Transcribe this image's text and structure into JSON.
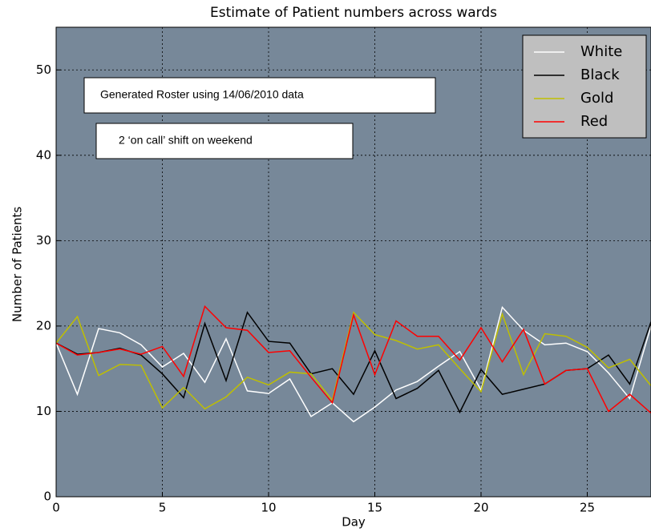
{
  "chart_data": {
    "type": "line",
    "title": "Estimate of Patient numbers across wards",
    "xlabel": "Day",
    "ylabel": "Number of Patients",
    "x": [
      0,
      1,
      2,
      3,
      4,
      5,
      6,
      7,
      8,
      9,
      10,
      11,
      12,
      13,
      14,
      15,
      16,
      17,
      18,
      19,
      20,
      21,
      22,
      23,
      24,
      25,
      26,
      27,
      28
    ],
    "series": [
      {
        "name": "White",
        "color": "#ffffff",
        "values": [
          18,
          12,
          19.7,
          19.2,
          17.8,
          15.2,
          16.8,
          13.4,
          18.5,
          12.4,
          12.1,
          13.8,
          9.4,
          11,
          8.8,
          10.5,
          12.5,
          13.5,
          15.3,
          17,
          12.5,
          22.2,
          19.5,
          17.8,
          18,
          17,
          14.5,
          11.5,
          20
        ]
      },
      {
        "name": "Black",
        "color": "#000000",
        "values": [
          18,
          16.7,
          16.9,
          17.4,
          16.6,
          14.4,
          11.6,
          20.3,
          13.6,
          21.6,
          18.2,
          18,
          14.4,
          15,
          12,
          17.1,
          11.5,
          12.7,
          14.8,
          9.9,
          14.9,
          12,
          12.6,
          13.2,
          14.8,
          15,
          16.6,
          13.2,
          20.5
        ]
      },
      {
        "name": "Gold",
        "color": "#bfbf00",
        "values": [
          18,
          21.1,
          14.2,
          15.5,
          15.4,
          10.4,
          12.8,
          10.3,
          11.7,
          14,
          13.1,
          14.6,
          14.4,
          11.3,
          21.6,
          19,
          18.3,
          17.3,
          17.8,
          15,
          12.3,
          21.4,
          14.3,
          19.1,
          18.8,
          17.5,
          15.1,
          16.1,
          13
        ]
      },
      {
        "name": "Red",
        "color": "#ff0000",
        "values": [
          18,
          16.6,
          16.9,
          17.3,
          16.7,
          17.6,
          14.1,
          22.3,
          19.8,
          19.5,
          16.9,
          17.1,
          14,
          11,
          21.3,
          14.3,
          20.6,
          18.8,
          18.8,
          16,
          19.8,
          15.8,
          19.6,
          13.2,
          14.8,
          15,
          10,
          12,
          9.8
        ]
      }
    ],
    "xlim": [
      0,
      28
    ],
    "ylim": [
      0,
      55
    ],
    "xticks": [
      0,
      5,
      10,
      15,
      20,
      25
    ],
    "yticks": [
      0,
      10,
      20,
      30,
      40,
      50
    ],
    "grid": true,
    "legend": "upper right",
    "background": "#778899",
    "annotations": [
      "Generated Roster using 14/06/2010 data",
      "2 ‘on call’ shift on weekend"
    ]
  }
}
